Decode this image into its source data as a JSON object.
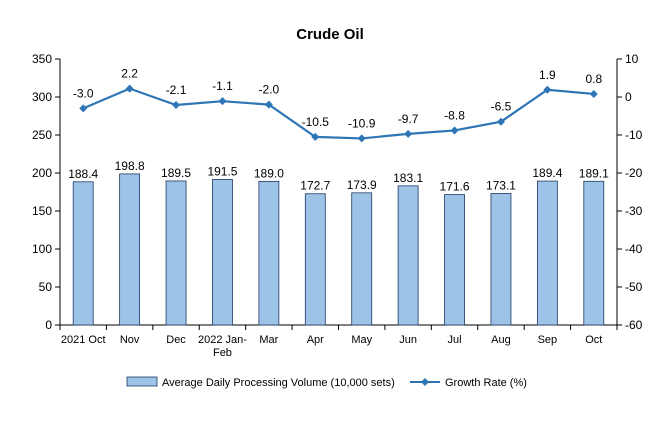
{
  "chart_data": {
    "type": "bar+line",
    "title": "Crude Oil",
    "categories": [
      [
        "2021 Oct"
      ],
      [
        "Nov"
      ],
      [
        "Dec"
      ],
      [
        "2022 Jan-",
        "Feb"
      ],
      [
        "Mar"
      ],
      [
        "Apr"
      ],
      [
        "May"
      ],
      [
        "Jun"
      ],
      [
        "Jul"
      ],
      [
        "Aug"
      ],
      [
        "Sep"
      ],
      [
        "Oct"
      ]
    ],
    "series": [
      {
        "name": "Average Daily Processing Volume (10,000 sets)",
        "type": "bar",
        "axis": "left",
        "color": "#9dc3e6",
        "values": [
          188.4,
          198.8,
          189.5,
          191.5,
          189.0,
          172.7,
          173.9,
          183.1,
          171.6,
          173.1,
          189.4,
          189.1
        ],
        "labels": [
          "188.4",
          "198.8",
          "189.5",
          "191.5",
          "189.0",
          "172.7",
          "173.9",
          "183.1",
          "171.6",
          "173.1",
          "189.4",
          "189.1"
        ]
      },
      {
        "name": "Growth Rate (%)",
        "type": "line",
        "axis": "right",
        "color": "#2e75b6",
        "values": [
          -3.0,
          2.2,
          -2.1,
          -1.1,
          -2.0,
          -10.5,
          -10.9,
          -9.7,
          -8.8,
          -6.5,
          1.9,
          0.8
        ],
        "labels": [
          "-3.0",
          "2.2",
          "-2.1",
          "-1.1",
          "-2.0",
          "-10.5",
          "-10.9",
          "-9.7",
          "-8.8",
          "-6.5",
          "1.9",
          "0.8"
        ]
      }
    ],
    "y_left": {
      "min": 0,
      "max": 350,
      "ticks": [
        0,
        50,
        100,
        150,
        200,
        250,
        300,
        350
      ]
    },
    "y_right": {
      "min": -60,
      "max": 10,
      "ticks": [
        -60,
        -50,
        -40,
        -30,
        -20,
        -10,
        0,
        10
      ]
    },
    "grid": false,
    "legend_position": "bottom"
  }
}
